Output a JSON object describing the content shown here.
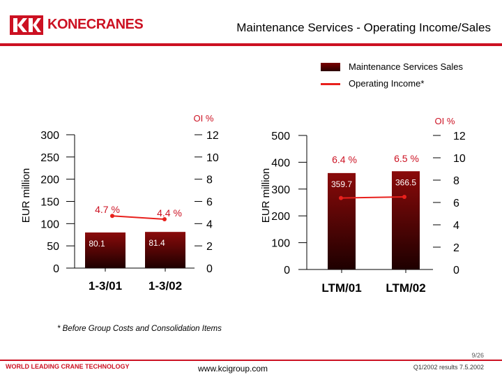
{
  "header": {
    "logo_text": "KONECRANES",
    "title": "Maintenance Services - Operating Income/Sales"
  },
  "legend": {
    "bar_label": "Maintenance Services Sales",
    "line_label": "Operating Income*"
  },
  "colors": {
    "brand_red": "#cc1122",
    "bar_dark": "#3a0000",
    "line_red": "#e8201c",
    "oi_label_red": "#cc1122"
  },
  "chart_data": [
    {
      "type": "bar",
      "categories": [
        "1-3/01",
        "1-3/02"
      ],
      "series": [
        {
          "name": "Maintenance Services Sales",
          "values": [
            80.1,
            81.4
          ]
        },
        {
          "name": "Operating Income*",
          "type": "line",
          "values": [
            4.7,
            4.4
          ],
          "value_labels": [
            "4.7 %",
            "4.4 %"
          ],
          "axis": "right"
        }
      ],
      "bar_labels": [
        "80.1",
        "81.4"
      ],
      "ylabel": "EUR million",
      "ylim": [
        0,
        300
      ],
      "yticks": [
        "0",
        "50",
        "100",
        "150",
        "200",
        "250",
        "300"
      ],
      "y2label": "OI %",
      "y2lim": [
        0,
        12
      ],
      "y2ticks": [
        "0",
        "2",
        "4",
        "6",
        "8",
        "10",
        "12"
      ]
    },
    {
      "type": "bar",
      "categories": [
        "LTM/01",
        "LTM/02"
      ],
      "series": [
        {
          "name": "Maintenance Services Sales",
          "values": [
            359.7,
            366.5
          ]
        },
        {
          "name": "Operating Income*",
          "type": "line",
          "values": [
            6.4,
            6.5
          ],
          "value_labels": [
            "6.4 %",
            "6.5 %"
          ],
          "axis": "right"
        }
      ],
      "bar_labels": [
        "359.7",
        "366.5"
      ],
      "ylabel": "EUR million",
      "ylim": [
        0,
        500
      ],
      "yticks": [
        "0",
        "100",
        "200",
        "300",
        "400",
        "500"
      ],
      "y2label": "OI %",
      "y2lim": [
        0,
        12
      ],
      "y2ticks": [
        "0",
        "2",
        "4",
        "6",
        "8",
        "10",
        "12"
      ]
    }
  ],
  "footnote": "* Before Group Costs and Consolidation Items",
  "footer": {
    "tagline": "WORLD LEADING CRANE TECHNOLOGY",
    "website": "www.kcigroup.com",
    "results": "Q1/2002 results 7.5.2002",
    "page": "9/26"
  }
}
